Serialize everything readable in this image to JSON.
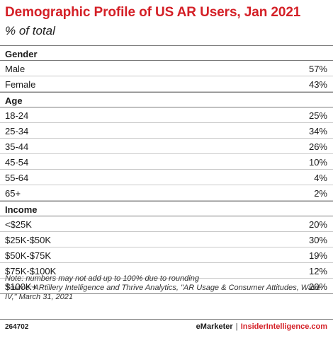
{
  "title": "Demographic Profile of US AR Users, Jan 2021",
  "subtitle": "% of total",
  "chart_data": {
    "type": "table",
    "title": "Demographic Profile of US AR Users, Jan 2021",
    "subtitle": "% of total",
    "sections": [
      {
        "name": "Gender",
        "rows": [
          {
            "label": "Male",
            "value": "57%"
          },
          {
            "label": "Female",
            "value": "43%"
          }
        ]
      },
      {
        "name": "Age",
        "rows": [
          {
            "label": "18-24",
            "value": "25%"
          },
          {
            "label": "25-34",
            "value": "34%"
          },
          {
            "label": "35-44",
            "value": "26%"
          },
          {
            "label": "45-54",
            "value": "10%"
          },
          {
            "label": "55-64",
            "value": "4%"
          },
          {
            "label": "65+",
            "value": "2%"
          }
        ]
      },
      {
        "name": "Income",
        "rows": [
          {
            "label": "<$25K",
            "value": "20%"
          },
          {
            "label": "$25K-$50K",
            "value": "30%"
          },
          {
            "label": "$50K-$75K",
            "value": "19%"
          },
          {
            "label": "$75K-$100K",
            "value": "12%"
          },
          {
            "label": "$100K+",
            "value": "20%"
          }
        ]
      }
    ]
  },
  "note": "Note: numbers may not add up to 100% due to rounding",
  "source": "Source: ARtillery Intelligence and Thrive Analytics, \"AR Usage & Consumer Attitudes, Wave IV,\" March 31, 2021",
  "footer": {
    "code": "264702",
    "brand1": "eMarketer",
    "separator": "|",
    "brand2": "InsiderIntelligence.com"
  },
  "colors": {
    "title": "#d41f26",
    "rule": "#c9c9c9"
  }
}
